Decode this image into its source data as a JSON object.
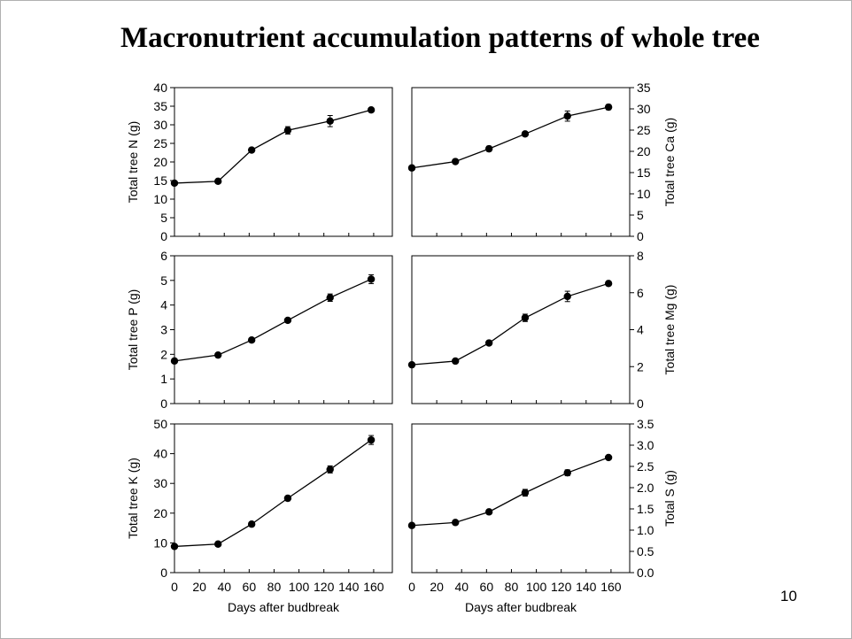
{
  "title": "Macronutrient accumulation patterns of whole tree",
  "page_number": "10",
  "chart_data": [
    {
      "type": "line",
      "ylabel": "Total tree N (g)",
      "x": [
        0,
        35,
        62,
        91,
        125,
        158
      ],
      "values": [
        14.3,
        14.8,
        23.2,
        28.5,
        31.0,
        34.0
      ],
      "errors": [
        0.3,
        0.4,
        0.5,
        1.0,
        1.5,
        0.4
      ],
      "ylim": [
        0,
        40
      ],
      "yticks": [
        "0",
        "5",
        "10",
        "15",
        "20",
        "25",
        "30",
        "35",
        "40"
      ],
      "xlim": [
        0,
        175
      ],
      "xticks": [],
      "xlabel": "",
      "y_axis_side": "left"
    },
    {
      "type": "line",
      "ylabel": "Total tree Ca (g)",
      "x": [
        0,
        35,
        62,
        91,
        125,
        158
      ],
      "values": [
        16.1,
        17.6,
        20.6,
        24.1,
        28.3,
        30.4
      ],
      "errors": [
        0.4,
        0.4,
        0.6,
        0.5,
        1.2,
        0.6
      ],
      "ylim": [
        0,
        35
      ],
      "yticks": [
        "0",
        "5",
        "10",
        "15",
        "20",
        "25",
        "30",
        "35"
      ],
      "xlim": [
        0,
        175
      ],
      "xticks": [],
      "xlabel": "",
      "y_axis_side": "right"
    },
    {
      "type": "line",
      "ylabel": "Total tree P (g)",
      "x": [
        0,
        35,
        62,
        91,
        125,
        158
      ],
      "values": [
        1.73,
        1.97,
        2.58,
        3.38,
        4.3,
        5.05
      ],
      "errors": [
        0.05,
        0.05,
        0.07,
        0.08,
        0.15,
        0.18
      ],
      "ylim": [
        0,
        6
      ],
      "yticks": [
        "0",
        "1",
        "2",
        "3",
        "4",
        "5",
        "6"
      ],
      "xlim": [
        0,
        175
      ],
      "xticks": [],
      "xlabel": "",
      "y_axis_side": "left"
    },
    {
      "type": "line",
      "ylabel": "Total tree Mg (g)",
      "x": [
        0,
        35,
        62,
        91,
        125,
        158
      ],
      "values": [
        2.1,
        2.3,
        3.28,
        4.64,
        5.8,
        6.5
      ],
      "errors": [
        0.06,
        0.07,
        0.1,
        0.2,
        0.28,
        0.12
      ],
      "ylim": [
        0,
        8
      ],
      "yticks": [
        "0",
        "2",
        "4",
        "6",
        "8"
      ],
      "xlim": [
        0,
        175
      ],
      "xticks": [],
      "xlabel": "",
      "y_axis_side": "right"
    },
    {
      "type": "line",
      "ylabel": "Total tree K (g)",
      "x": [
        0,
        35,
        62,
        91,
        125,
        158
      ],
      "values": [
        8.8,
        9.6,
        16.3,
        25.0,
        34.7,
        44.6
      ],
      "errors": [
        0.4,
        0.4,
        0.6,
        0.8,
        1.2,
        1.5
      ],
      "ylim": [
        0,
        50
      ],
      "yticks": [
        "0",
        "10",
        "20",
        "30",
        "40",
        "50"
      ],
      "xlim": [
        0,
        175
      ],
      "xticks": [
        "0",
        "20",
        "40",
        "60",
        "80",
        "100",
        "120",
        "140",
        "160"
      ],
      "xlabel": "Days after budbreak",
      "y_axis_side": "left"
    },
    {
      "type": "line",
      "ylabel": "Total S (g)",
      "x": [
        0,
        35,
        62,
        91,
        125,
        158
      ],
      "values": [
        1.11,
        1.18,
        1.43,
        1.88,
        2.35,
        2.71
      ],
      "errors": [
        0.03,
        0.03,
        0.05,
        0.08,
        0.07,
        0.04
      ],
      "ylim": [
        0,
        3.5
      ],
      "yticks": [
        "0.0",
        "0.5",
        "1.0",
        "1.5",
        "2.0",
        "2.5",
        "3.0",
        "3.5"
      ],
      "xlim": [
        0,
        175
      ],
      "xticks": [
        "0",
        "20",
        "40",
        "60",
        "80",
        "100",
        "120",
        "140",
        "160"
      ],
      "xlabel": "Days after budbreak",
      "y_axis_side": "right"
    }
  ]
}
